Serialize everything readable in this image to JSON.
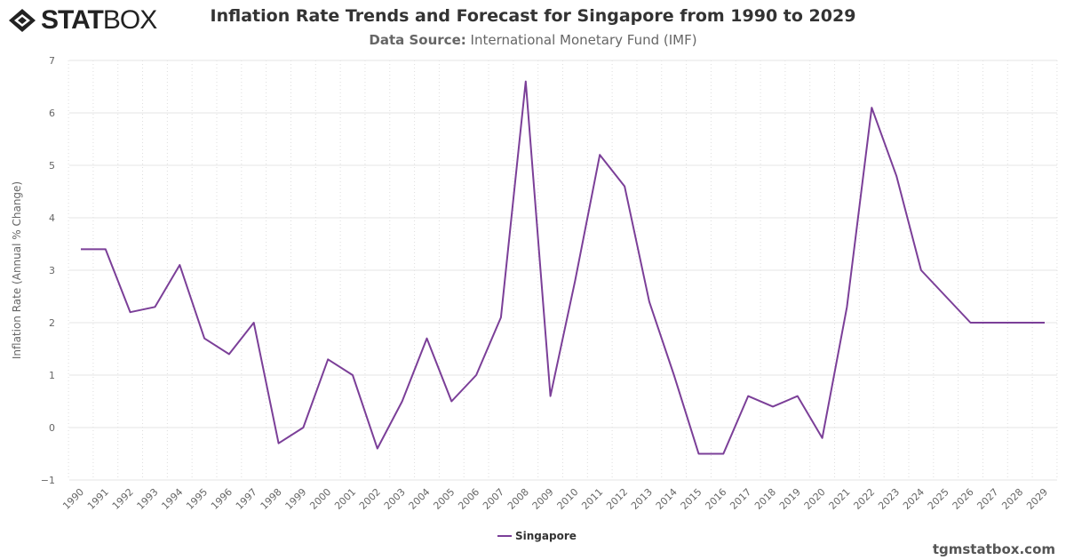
{
  "logo": {
    "bold": "STAT",
    "light": "BOX"
  },
  "header": {
    "title": "Inflation Rate Trends and Forecast for Singapore from 1990 to 2029",
    "source_label": "Data Source:",
    "source_value": "International Monetary Fund (IMF)"
  },
  "watermark": "tgmstatbox.com",
  "chart_data": {
    "type": "line",
    "title": "Inflation Rate Trends and Forecast for Singapore from 1990 to 2029",
    "xlabel": "",
    "ylabel": "Inflation Rate (Annual % Change)",
    "ylim": [
      -1,
      7
    ],
    "yticks": [
      -1,
      0,
      1,
      2,
      3,
      4,
      5,
      6,
      7
    ],
    "grid": true,
    "legend": "bottom-center",
    "categories": [
      "1990",
      "1991",
      "1992",
      "1993",
      "1994",
      "1995",
      "1996",
      "1997",
      "1998",
      "1999",
      "2000",
      "2001",
      "2002",
      "2003",
      "2004",
      "2005",
      "2006",
      "2007",
      "2008",
      "2009",
      "2010",
      "2011",
      "2012",
      "2013",
      "2014",
      "2015",
      "2016",
      "2017",
      "2018",
      "2019",
      "2020",
      "2021",
      "2022",
      "2023",
      "2024",
      "2025",
      "2026",
      "2027",
      "2028",
      "2029"
    ],
    "series": [
      {
        "name": "Singapore",
        "color": "#7b3f98",
        "values": [
          3.4,
          3.4,
          2.2,
          2.3,
          3.1,
          1.7,
          1.4,
          2.0,
          -0.3,
          0.0,
          1.3,
          1.0,
          -0.4,
          0.5,
          1.7,
          0.5,
          1.0,
          2.1,
          6.6,
          0.6,
          2.8,
          5.2,
          4.6,
          2.4,
          1.0,
          -0.5,
          -0.5,
          0.6,
          0.4,
          0.6,
          -0.2,
          2.3,
          6.1,
          4.8,
          3.0,
          2.5,
          2.0,
          2.0,
          2.0,
          2.0
        ]
      }
    ]
  }
}
